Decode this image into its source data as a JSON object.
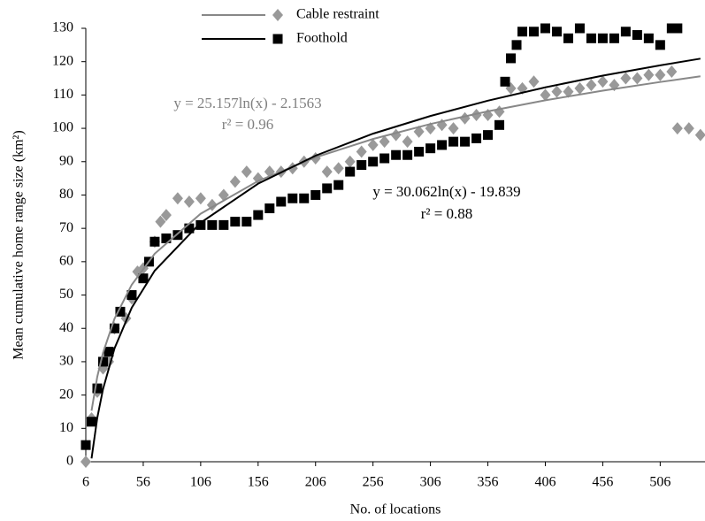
{
  "chart_data": {
    "type": "scatter",
    "x_label": "No. of locations",
    "y_label": "Mean cumulative home range size (km²)",
    "xlim": [
      6,
      545
    ],
    "ylim": [
      0,
      130
    ],
    "xticks": [
      6,
      56,
      106,
      156,
      206,
      256,
      306,
      356,
      406,
      456,
      506
    ],
    "yticks": [
      0,
      10,
      20,
      30,
      40,
      50,
      60,
      70,
      80,
      90,
      100,
      110,
      120,
      130
    ],
    "grid": false,
    "legend": "top",
    "series": [
      {
        "name": "Cable restraint",
        "color": "#999999",
        "marker": "diamond",
        "x": [
          6,
          11,
          16,
          21,
          26,
          31,
          41,
          46,
          51,
          56,
          66,
          71,
          76,
          86,
          96,
          106,
          116,
          126,
          136,
          146,
          156,
          166,
          176,
          186,
          196,
          206,
          216,
          226,
          236,
          246,
          256,
          266,
          276,
          286,
          296,
          306,
          316,
          326,
          336,
          346,
          356,
          366,
          376,
          386,
          396,
          406,
          416,
          426,
          436,
          446,
          456,
          466,
          476,
          486,
          496,
          506,
          516,
          521,
          531,
          541
        ],
        "values": [
          0,
          13,
          21,
          28,
          30,
          40,
          43,
          49,
          57,
          58,
          66,
          72,
          74,
          79,
          78,
          79,
          77,
          80,
          84,
          87,
          85,
          87,
          87,
          88,
          90,
          91,
          87,
          88,
          90,
          93,
          95,
          96,
          98,
          96,
          99,
          100,
          101,
          100,
          103,
          104,
          104,
          105,
          112,
          112,
          114,
          110,
          111,
          111,
          112,
          113,
          114,
          113,
          115,
          115,
          116,
          116,
          117,
          100,
          100,
          98
        ],
        "trend": {
          "color": "#888888",
          "x": [
            11,
            16,
            21,
            31,
            46,
            66,
            106,
            156,
            206,
            256,
            306,
            356,
            406,
            456,
            506,
            541
          ],
          "values": [
            15.3,
            25.5,
            32.7,
            42.9,
            53.1,
            62.4,
            74.4,
            84.2,
            91.3,
            96.8,
            101.3,
            105.1,
            108.4,
            111.3,
            113.9,
            115.6
          ],
          "equation": "y = 25.157ln(x) - 2.1563",
          "r2": "r² = 0.96"
        }
      },
      {
        "name": "Foothold",
        "color": "#000000",
        "marker": "square",
        "x": [
          6,
          11,
          16,
          21,
          26,
          31,
          36,
          46,
          56,
          61,
          66,
          76,
          86,
          96,
          106,
          116,
          126,
          136,
          146,
          156,
          166,
          176,
          186,
          196,
          206,
          216,
          226,
          236,
          246,
          256,
          266,
          276,
          286,
          296,
          306,
          316,
          326,
          336,
          346,
          356,
          366,
          371,
          376,
          381,
          386,
          396,
          406,
          416,
          426,
          436,
          446,
          456,
          466,
          476,
          486,
          496,
          506,
          516,
          521
        ],
        "values": [
          5,
          12,
          22,
          30,
          33,
          40,
          45,
          50,
          55,
          60,
          66,
          67,
          68,
          70,
          71,
          71,
          71,
          72,
          72,
          74,
          76,
          78,
          79,
          79,
          80,
          82,
          83,
          87,
          89,
          90,
          91,
          92,
          92,
          93,
          94,
          95,
          96,
          96,
          97,
          98,
          101,
          114,
          121,
          125,
          129,
          129,
          130,
          129,
          127,
          130,
          127,
          127,
          127,
          129,
          128,
          127,
          125,
          130,
          130
        ],
        "trend": {
          "color": "#000000",
          "x": [
            11,
            16,
            21,
            31,
            46,
            66,
            106,
            156,
            206,
            256,
            306,
            356,
            406,
            456,
            506,
            541
          ],
          "values": [
            1.0,
            13.2,
            21.8,
            34.0,
            46.2,
            57.3,
            71.7,
            83.4,
            91.8,
            98.4,
            103.7,
            108.3,
            112.3,
            115.8,
            118.9,
            120.9
          ],
          "equation": "y = 30.062ln(x) - 19.839",
          "r2": "r² = 0.88"
        }
      }
    ]
  }
}
